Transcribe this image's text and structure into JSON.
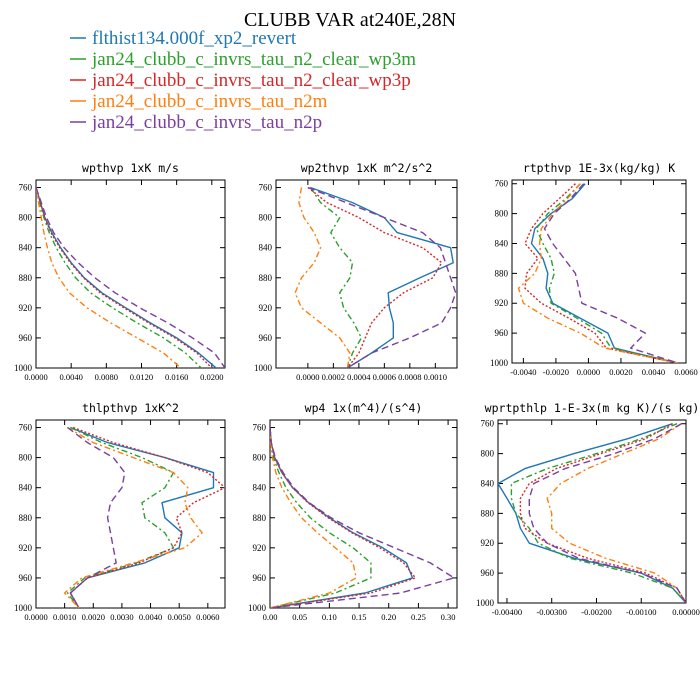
{
  "title": "CLUBB VAR at240E,28N",
  "legend": [
    {
      "name": "flthist134.000f_xp2_revert",
      "color": "#1f77b4",
      "dash": "solid"
    },
    {
      "name": "jan24_clubb_c_invrs_tau_n2_clear_wp3m",
      "color": "#2ca02c",
      "dash": "dashdot"
    },
    {
      "name": "jan24_clubb_c_invrs_tau_n2_clear_wp3p",
      "color": "#d62728",
      "dash": "dot"
    },
    {
      "name": "jan24_clubb_c_invrs_tau_n2m",
      "color": "#ff7f0e",
      "dash": "dashdot"
    },
    {
      "name": "jan24_clubb_c_invrs_tau_n2p",
      "color": "#7b3fa0",
      "dash": "dash"
    }
  ],
  "chart_data": [
    {
      "type": "line",
      "title": "wpthvp  1xK m/s",
      "ylim": [
        1000,
        750
      ],
      "xlim": [
        0.0,
        0.0215
      ],
      "yticks": [
        "760",
        "800",
        "840",
        "880",
        "920",
        "960",
        "1000"
      ],
      "xticks": [
        "0.0000",
        "0.0040",
        "0.0080",
        "0.0120",
        "0.0160",
        "0.0200"
      ],
      "y": [
        760,
        780,
        800,
        820,
        840,
        860,
        880,
        900,
        920,
        940,
        960,
        980,
        1000
      ],
      "series": [
        {
          "values": [
            0.0,
            0.0005,
            0.001,
            0.0018,
            0.0028,
            0.004,
            0.0055,
            0.0075,
            0.0102,
            0.013,
            0.016,
            0.0185,
            0.0205
          ]
        },
        {
          "values": [
            0.0,
            0.0004,
            0.0009,
            0.0015,
            0.0023,
            0.0033,
            0.0045,
            0.0062,
            0.0087,
            0.0115,
            0.0145,
            0.017,
            0.0188
          ]
        },
        {
          "values": [
            0.0,
            0.0005,
            0.001,
            0.0017,
            0.0027,
            0.0039,
            0.0054,
            0.0073,
            0.01,
            0.0128,
            0.0158,
            0.0183,
            0.02
          ]
        },
        {
          "values": [
            0.0,
            0.0003,
            0.0006,
            0.0009,
            0.0013,
            0.0018,
            0.0026,
            0.0038,
            0.0058,
            0.0085,
            0.0115,
            0.0145,
            0.0165
          ]
        },
        {
          "values": [
            0.0,
            0.0006,
            0.0012,
            0.002,
            0.0032,
            0.0048,
            0.0067,
            0.009,
            0.0118,
            0.015,
            0.0178,
            0.0203,
            0.0215
          ]
        }
      ]
    },
    {
      "type": "line",
      "title": "wp2thvp  1xK m^2/s^2",
      "ylim": [
        1000,
        750
      ],
      "xlim": [
        -0.00025,
        0.00117
      ],
      "yticks": [
        "760",
        "800",
        "840",
        "880",
        "920",
        "960",
        "1000"
      ],
      "xticks": [
        "0.0000",
        "0.0002",
        "0.0004",
        "0.0006",
        "0.0008",
        "0.0010"
      ],
      "y": [
        760,
        780,
        800,
        820,
        840,
        860,
        880,
        900,
        920,
        940,
        960,
        980,
        1000
      ],
      "series": [
        {
          "values": [
            2e-05,
            0.00035,
            0.0006,
            0.0007,
            0.00112,
            0.00114,
            0.00088,
            0.00063,
            0.00064,
            0.00067,
            0.00067,
            0.0005,
            0.00031
          ]
        },
        {
          "values": [
            2e-05,
            0.0001,
            0.00025,
            0.00018,
            0.00025,
            0.00035,
            0.00033,
            0.00025,
            0.00028,
            0.00036,
            0.00042,
            0.00035,
            0.00031
          ]
        },
        {
          "values": [
            0.0,
            0.00015,
            0.0004,
            0.0006,
            0.0009,
            0.00105,
            0.00098,
            0.00075,
            0.0006,
            0.0005,
            0.00045,
            0.0004,
            0.00031
          ]
        },
        {
          "values": [
            -5e-05,
            -7e-05,
            -3e-05,
            5e-05,
            0.0001,
            5e-05,
            -5e-05,
            -0.0001,
            -5e-05,
            0.0001,
            0.00025,
            0.00033,
            0.00031
          ]
        },
        {
          "values": [
            0.0,
            0.0003,
            0.0006,
            0.0009,
            0.00104,
            0.00108,
            0.00112,
            0.00116,
            0.00112,
            0.00105,
            0.0008,
            0.0005,
            0.00031
          ]
        }
      ]
    },
    {
      "type": "line",
      "title": "rtpthvp  1E-3x(kg/kg) K",
      "ylim": [
        1000,
        755
      ],
      "xlim": [
        -0.0047,
        0.006
      ],
      "yticks": [
        "760",
        "800",
        "840",
        "880",
        "920",
        "960",
        "1000"
      ],
      "xticks": [
        "-0.0040",
        "-0.0020",
        "0.0000",
        "0.0020",
        "0.0040",
        "0.0060"
      ],
      "y": [
        760,
        780,
        800,
        820,
        840,
        860,
        880,
        900,
        920,
        940,
        960,
        980,
        1000
      ],
      "series": [
        {
          "values": [
            -0.0002,
            -0.001,
            -0.0023,
            -0.0033,
            -0.0035,
            -0.0028,
            -0.0025,
            -0.0026,
            -0.0022,
            -0.0005,
            0.0012,
            0.0016,
            0.0055
          ]
        },
        {
          "values": [
            -0.0005,
            -0.0014,
            -0.0025,
            -0.0032,
            -0.0028,
            -0.0023,
            -0.0021,
            -0.0024,
            -0.0023,
            -0.0007,
            0.0008,
            0.0014,
            0.0055
          ]
        },
        {
          "values": [
            -0.0008,
            -0.0018,
            -0.0028,
            -0.0035,
            -0.0039,
            -0.0031,
            -0.0038,
            -0.0039,
            -0.0029,
            -0.0012,
            0.0004,
            0.0011,
            0.0055
          ]
        },
        {
          "values": [
            -0.0005,
            -0.0013,
            -0.0022,
            -0.0029,
            -0.003,
            -0.0029,
            -0.0033,
            -0.0043,
            -0.004,
            -0.0025,
            -0.0005,
            0.001,
            0.0055
          ]
        },
        {
          "values": [
            -0.0003,
            -0.0011,
            -0.0021,
            -0.0027,
            -0.0022,
            -0.0015,
            -0.0008,
            -0.0006,
            -0.0004,
            0.0018,
            0.0035,
            0.0026,
            0.0055
          ]
        }
      ]
    },
    {
      "type": "line",
      "title": "thlpthvp  1xK^2",
      "ylim": [
        1000,
        750
      ],
      "xlim": [
        0.0,
        0.0066
      ],
      "yticks": [
        "760",
        "800",
        "840",
        "880",
        "920",
        "960",
        "1000"
      ],
      "xticks": [
        "0.0000",
        "0.0010",
        "0.0020",
        "0.0030",
        "0.0040",
        "0.0050",
        "0.0060"
      ],
      "y": [
        760,
        780,
        800,
        820,
        840,
        860,
        880,
        900,
        920,
        940,
        960,
        980,
        1000
      ],
      "series": [
        {
          "values": [
            0.0012,
            0.0025,
            0.0045,
            0.0062,
            0.0062,
            0.0044,
            0.0045,
            0.0051,
            0.005,
            0.0038,
            0.0018,
            0.0012,
            0.0015
          ]
        },
        {
          "values": [
            0.0012,
            0.0023,
            0.0037,
            0.0048,
            0.0045,
            0.0037,
            0.0038,
            0.0045,
            0.0048,
            0.0035,
            0.0017,
            0.0011,
            0.0015
          ]
        },
        {
          "values": [
            0.0013,
            0.0027,
            0.0045,
            0.006,
            0.0066,
            0.0055,
            0.0049,
            0.0051,
            0.0048,
            0.0036,
            0.0018,
            0.0012,
            0.0015
          ]
        },
        {
          "values": [
            0.0011,
            0.002,
            0.0034,
            0.0048,
            0.0053,
            0.0052,
            0.0054,
            0.0058,
            0.0052,
            0.0034,
            0.0016,
            0.001,
            0.0015
          ]
        },
        {
          "values": [
            0.0011,
            0.0018,
            0.0027,
            0.0031,
            0.003,
            0.0026,
            0.0025,
            0.0026,
            0.0027,
            0.0028,
            0.0018,
            0.0012,
            0.0015
          ]
        }
      ]
    },
    {
      "type": "line",
      "title": "wp4  1x(m^4)/(s^4)",
      "ylim": [
        1000,
        750
      ],
      "xlim": [
        0.0,
        0.315
      ],
      "yticks": [
        "760",
        "800",
        "840",
        "880",
        "920",
        "960",
        "1000"
      ],
      "xticks": [
        "0.00",
        "0.05",
        "0.10",
        "0.15",
        "0.20",
        "0.25",
        "0.30"
      ],
      "y": [
        760,
        780,
        800,
        820,
        840,
        860,
        880,
        900,
        920,
        940,
        960,
        980,
        1000
      ],
      "series": [
        {
          "values": [
            0.0,
            0.002,
            0.008,
            0.02,
            0.038,
            0.065,
            0.1,
            0.14,
            0.19,
            0.23,
            0.24,
            0.16,
            0.0
          ]
        },
        {
          "values": [
            0.0,
            0.002,
            0.006,
            0.015,
            0.027,
            0.045,
            0.068,
            0.1,
            0.14,
            0.17,
            0.17,
            0.11,
            0.0
          ]
        },
        {
          "values": [
            0.0,
            0.002,
            0.008,
            0.02,
            0.038,
            0.064,
            0.098,
            0.138,
            0.185,
            0.225,
            0.245,
            0.17,
            0.0
          ]
        },
        {
          "values": [
            0.0,
            0.001,
            0.004,
            0.01,
            0.02,
            0.035,
            0.053,
            0.08,
            0.11,
            0.14,
            0.145,
            0.1,
            0.0
          ]
        },
        {
          "values": [
            0.0,
            0.002,
            0.009,
            0.022,
            0.04,
            0.066,
            0.103,
            0.15,
            0.21,
            0.27,
            0.31,
            0.22,
            0.0
          ]
        }
      ]
    },
    {
      "type": "line",
      "title": "wprtpthlp  1-E-3x(m kg K)/(s kg)",
      "ylim": [
        1000,
        755
      ],
      "xlim": [
        -0.0042,
        0.0
      ],
      "yticks": [
        "760",
        "800",
        "840",
        "880",
        "920",
        "960",
        "1000"
      ],
      "xticks": [
        "-0.00400",
        "-0.00300",
        "-0.00200",
        "-0.00100",
        "0.00000"
      ],
      "y": [
        760,
        780,
        800,
        820,
        840,
        860,
        880,
        900,
        920,
        940,
        960,
        980,
        1000
      ],
      "series": [
        {
          "values": [
            -0.0003,
            -0.0013,
            -0.0025,
            -0.0036,
            -0.0042,
            -0.004,
            -0.0038,
            -0.0037,
            -0.0035,
            -0.0025,
            -0.001,
            -0.0003,
            0.0
          ]
        },
        {
          "values": [
            -0.0002,
            -0.001,
            -0.002,
            -0.0031,
            -0.0039,
            -0.0039,
            -0.0038,
            -0.0035,
            -0.0033,
            -0.0026,
            -0.0012,
            -0.0003,
            0.0
          ]
        },
        {
          "values": [
            -0.0003,
            -0.0009,
            -0.0019,
            -0.0029,
            -0.0035,
            -0.0037,
            -0.0037,
            -0.0036,
            -0.0031,
            -0.0022,
            -0.0009,
            -0.0002,
            0.0
          ]
        },
        {
          "values": [
            -0.0001,
            -0.0006,
            -0.0014,
            -0.0022,
            -0.0028,
            -0.0031,
            -0.003,
            -0.003,
            -0.0026,
            -0.0018,
            -0.0007,
            -0.0002,
            0.0
          ]
        },
        {
          "values": [
            -0.0001,
            -0.0007,
            -0.0016,
            -0.0027,
            -0.0034,
            -0.0035,
            -0.0035,
            -0.0034,
            -0.0031,
            -0.0024,
            -0.001,
            -0.0002,
            0.0
          ]
        }
      ]
    }
  ]
}
